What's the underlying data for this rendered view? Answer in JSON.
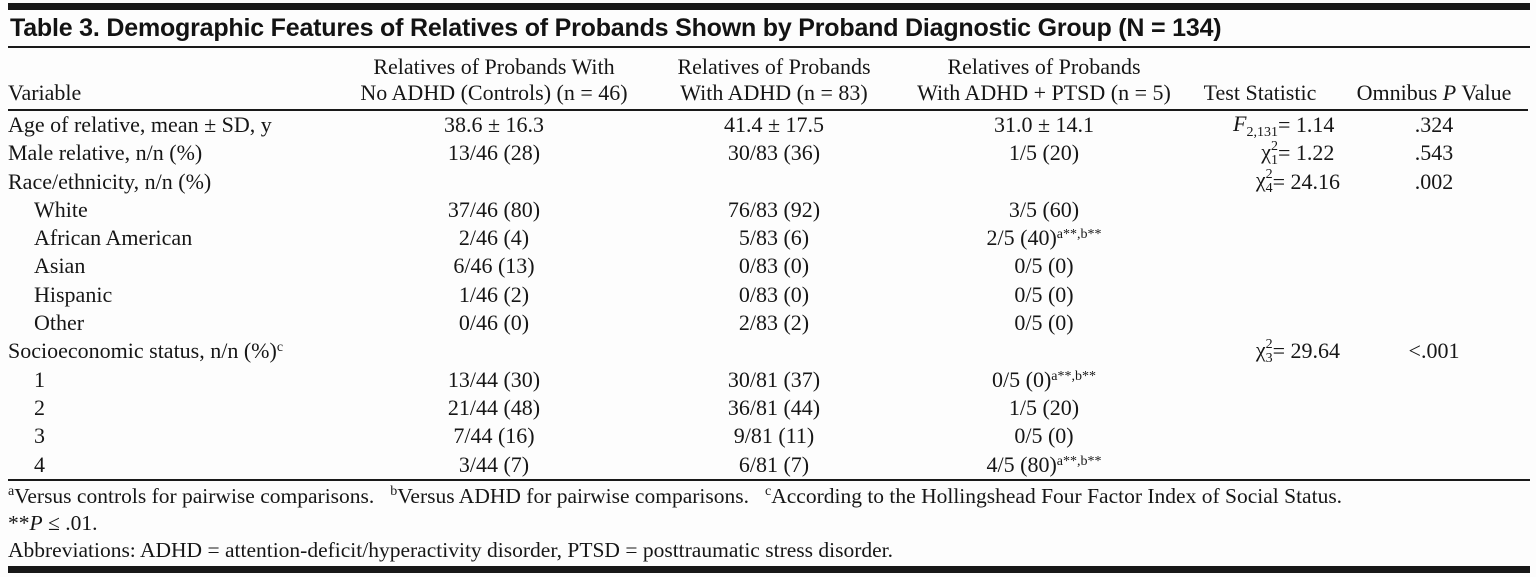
{
  "table": {
    "title": "Table 3. Demographic Features of Relatives of Probands Shown by Proband Diagnostic Group (N = 134)",
    "columns": {
      "variable": "Variable",
      "col2_line1": "Relatives of Probands With",
      "col2_line2": "No ADHD (Controls) (n = 46)",
      "col3_line1": "Relatives of Probands",
      "col3_line2": "With ADHD (n = 83)",
      "col4_line1": "Relatives of Probands",
      "col4_line2": "With ADHD + PTSD (n = 5)",
      "col5": "Test Statistic",
      "col6_pre": "Omnibus ",
      "col6_italic": "P",
      "col6_post": " Value"
    },
    "rows": [
      {
        "label": "Age of relative, mean ± SD, y",
        "indent": false,
        "label_sup": "",
        "c1": "38.6 ± 16.3",
        "c1_sup": "",
        "c2": "41.4 ± 17.5",
        "c2_sup": "",
        "c3": "31.0 ± 14.1",
        "c3_sup": "",
        "stat": {
          "base": "F",
          "italic": true,
          "sup": "",
          "sub": "2,131",
          "rhs": "= 1.14"
        },
        "p": ".324"
      },
      {
        "label": "Male relative, n/n (%)",
        "indent": false,
        "label_sup": "",
        "c1": "13/46 (28)",
        "c1_sup": "",
        "c2": "30/83 (36)",
        "c2_sup": "",
        "c3": "1/5 (20)",
        "c3_sup": "",
        "stat": {
          "base": "χ",
          "italic": false,
          "sup": "2",
          "sub": "1",
          "rhs": "= 1.22"
        },
        "p": ".543"
      },
      {
        "label": "Race/ethnicity, n/n (%)",
        "indent": false,
        "label_sup": "",
        "c1": "",
        "c1_sup": "",
        "c2": "",
        "c2_sup": "",
        "c3": "",
        "c3_sup": "",
        "stat": {
          "base": "χ",
          "italic": false,
          "sup": "2",
          "sub": "4",
          "rhs": "= 24.16"
        },
        "p": ".002"
      },
      {
        "label": "White",
        "indent": true,
        "label_sup": "",
        "c1": "37/46 (80)",
        "c1_sup": "",
        "c2": "76/83 (92)",
        "c2_sup": "",
        "c3": "3/5 (60)",
        "c3_sup": "",
        "stat": null,
        "p": ""
      },
      {
        "label": "African American",
        "indent": true,
        "label_sup": "",
        "c1": "2/46 (4)",
        "c1_sup": "",
        "c2": "5/83 (6)",
        "c2_sup": "",
        "c3": "2/5 (40)",
        "c3_sup": "a**,b**",
        "stat": null,
        "p": ""
      },
      {
        "label": "Asian",
        "indent": true,
        "label_sup": "",
        "c1": "6/46 (13)",
        "c1_sup": "",
        "c2": "0/83 (0)",
        "c2_sup": "",
        "c3": "0/5 (0)",
        "c3_sup": "",
        "stat": null,
        "p": ""
      },
      {
        "label": "Hispanic",
        "indent": true,
        "label_sup": "",
        "c1": "1/46 (2)",
        "c1_sup": "",
        "c2": "0/83 (0)",
        "c2_sup": "",
        "c3": "0/5 (0)",
        "c3_sup": "",
        "stat": null,
        "p": ""
      },
      {
        "label": "Other",
        "indent": true,
        "label_sup": "",
        "c1": "0/46 (0)",
        "c1_sup": "",
        "c2": "2/83 (2)",
        "c2_sup": "",
        "c3": "0/5 (0)",
        "c3_sup": "",
        "stat": null,
        "p": ""
      },
      {
        "label": "Socioeconomic status, n/n (%)",
        "indent": false,
        "label_sup": "c",
        "c1": "",
        "c1_sup": "",
        "c2": "",
        "c2_sup": "",
        "c3": "",
        "c3_sup": "",
        "stat": {
          "base": "χ",
          "italic": false,
          "sup": "2",
          "sub": "3",
          "rhs": "= 29.64"
        },
        "p": "<.001"
      },
      {
        "label": "1",
        "indent": true,
        "label_sup": "",
        "c1": "13/44 (30)",
        "c1_sup": "",
        "c2": "30/81 (37)",
        "c2_sup": "",
        "c3": "0/5 (0)",
        "c3_sup": "a**,b**",
        "stat": null,
        "p": ""
      },
      {
        "label": "2",
        "indent": true,
        "label_sup": "",
        "c1": "21/44 (48)",
        "c1_sup": "",
        "c2": "36/81 (44)",
        "c2_sup": "",
        "c3": "1/5 (20)",
        "c3_sup": "",
        "stat": null,
        "p": ""
      },
      {
        "label": "3",
        "indent": true,
        "label_sup": "",
        "c1": "7/44 (16)",
        "c1_sup": "",
        "c2": "9/81 (11)",
        "c2_sup": "",
        "c3": "0/5 (0)",
        "c3_sup": "",
        "stat": null,
        "p": ""
      },
      {
        "label": "4",
        "indent": true,
        "label_sup": "",
        "c1": "3/44 (7)",
        "c1_sup": "",
        "c2": "6/81 (7)",
        "c3": "4/5 (80)",
        "c2_sup": "",
        "c3_sup": "a**,b**",
        "stat": null,
        "p": ""
      }
    ],
    "footnotes": {
      "markers": [
        {
          "sup": "a",
          "text": "Versus controls for pairwise comparisons."
        },
        {
          "sup": "b",
          "text": "Versus ADHD for pairwise comparisons."
        },
        {
          "sup": "c",
          "text": "According to the Hollingshead Four Factor Index of Social Status."
        }
      ],
      "significance": {
        "stars": "**",
        "italic": "P",
        "rest": " ≤ .01."
      },
      "abbreviations": "Abbreviations: ADHD = attention-deficit/hyperactivity disorder, PTSD = posttraumatic stress disorder."
    }
  }
}
